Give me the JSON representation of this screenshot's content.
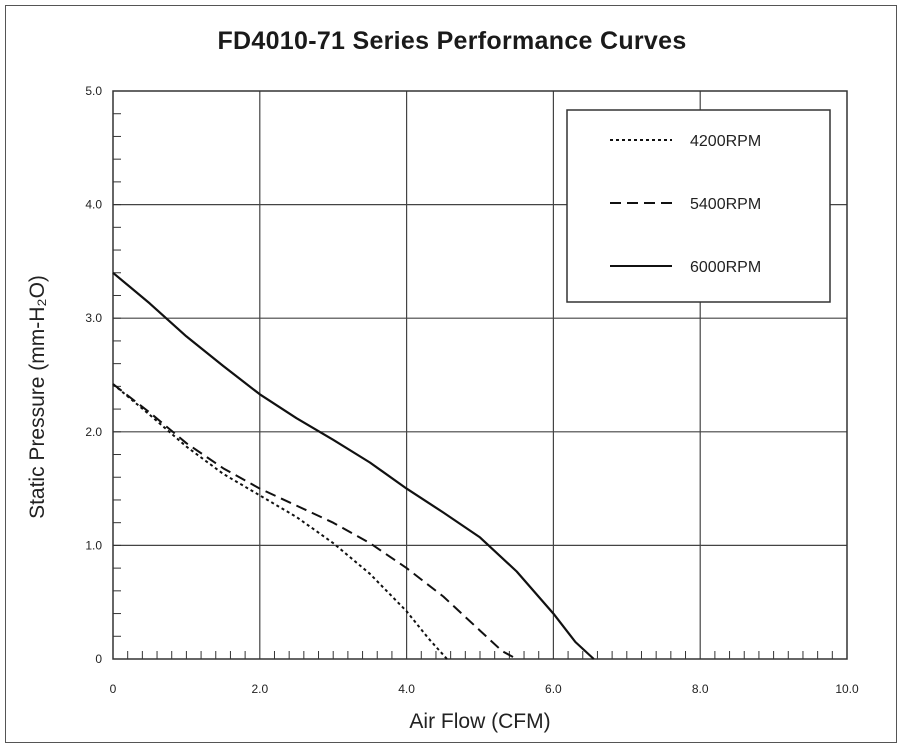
{
  "chart_data": {
    "type": "line",
    "title": "FD4010-71 Series Performance Curves",
    "xlabel": "Air Flow (CFM)",
    "ylabel": "Static Pressure (mm-H₂O)",
    "xlim": [
      0,
      10
    ],
    "ylim": [
      0,
      5
    ],
    "xticks": [
      "0",
      "2.0",
      "4.0",
      "6.0",
      "8.0",
      "10.0"
    ],
    "yticks": [
      "0",
      "1.0",
      "2.0",
      "3.0",
      "4.0",
      "5.0"
    ],
    "grid": true,
    "legend_position": "top-right",
    "series": [
      {
        "name": "4200RPM",
        "style": "dotted",
        "points": [
          [
            0,
            2.42
          ],
          [
            0.5,
            2.15
          ],
          [
            1.0,
            1.87
          ],
          [
            1.5,
            1.63
          ],
          [
            2.0,
            1.44
          ],
          [
            2.5,
            1.25
          ],
          [
            3.0,
            1.02
          ],
          [
            3.5,
            0.75
          ],
          [
            4.0,
            0.42
          ],
          [
            4.3,
            0.18
          ],
          [
            4.55,
            0.0
          ]
        ]
      },
      {
        "name": "5400RPM",
        "style": "dashed",
        "points": [
          [
            0,
            2.42
          ],
          [
            0.5,
            2.17
          ],
          [
            1.0,
            1.9
          ],
          [
            1.5,
            1.68
          ],
          [
            2.0,
            1.5
          ],
          [
            2.5,
            1.35
          ],
          [
            3.0,
            1.2
          ],
          [
            3.5,
            1.02
          ],
          [
            4.0,
            0.8
          ],
          [
            4.5,
            0.55
          ],
          [
            5.0,
            0.25
          ],
          [
            5.3,
            0.07
          ],
          [
            5.5,
            0.0
          ]
        ]
      },
      {
        "name": "6000RPM",
        "style": "solid",
        "points": [
          [
            0,
            3.4
          ],
          [
            0.5,
            3.13
          ],
          [
            1.0,
            2.84
          ],
          [
            1.5,
            2.58
          ],
          [
            2.0,
            2.33
          ],
          [
            2.5,
            2.12
          ],
          [
            3.0,
            1.93
          ],
          [
            3.5,
            1.73
          ],
          [
            4.0,
            1.5
          ],
          [
            4.5,
            1.29
          ],
          [
            5.0,
            1.07
          ],
          [
            5.5,
            0.77
          ],
          [
            6.0,
            0.4
          ],
          [
            6.3,
            0.15
          ],
          [
            6.55,
            0.0
          ]
        ]
      }
    ]
  }
}
